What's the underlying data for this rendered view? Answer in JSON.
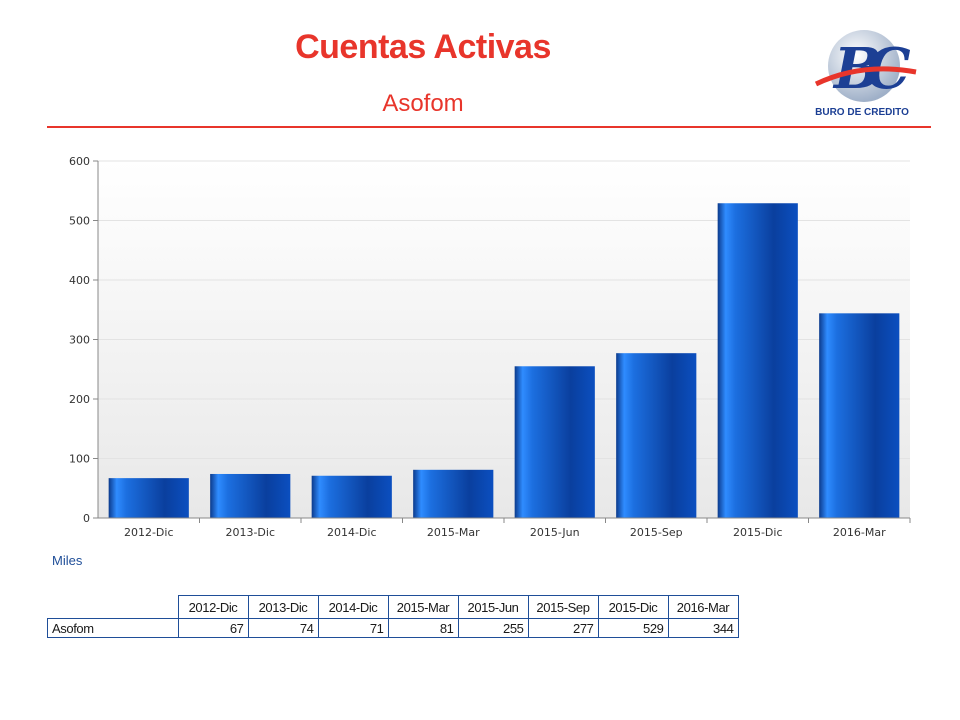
{
  "header": {
    "title": "Cuentas Activas",
    "subtitle": "Asofom"
  },
  "logo": {
    "text": "BURO DE CREDITO",
    "colors": {
      "primary": "#1c3f94",
      "accent": "#e8352b"
    }
  },
  "units_label": "Miles",
  "colors": {
    "accent": "#e8352b",
    "bar_dark": "#0b3a8c",
    "bar_light": "#2f8cff",
    "table_border": "#1f4e98"
  },
  "chart_data": {
    "type": "bar",
    "categories": [
      "2012-Dic",
      "2013-Dic",
      "2014-Dic",
      "2015-Mar",
      "2015-Jun",
      "2015-Sep",
      "2015-Dic",
      "2016-Mar"
    ],
    "values": [
      67,
      74,
      71,
      81,
      255,
      277,
      529,
      344
    ],
    "ylim": [
      0,
      600
    ],
    "yticks": [
      0,
      100,
      200,
      300,
      400,
      500,
      600
    ],
    "grid": true,
    "legend": "none"
  },
  "table": {
    "headers": [
      "2012-Dic",
      "2013-Dic",
      "2014-Dic",
      "2015-Mar",
      "2015-Jun",
      "2015-Sep",
      "2015-Dic",
      "2016-Mar"
    ],
    "rows": [
      {
        "label": "Asofom",
        "values": [
          "67",
          "74",
          "71",
          "81",
          "255",
          "277",
          "529",
          "344"
        ]
      }
    ]
  }
}
